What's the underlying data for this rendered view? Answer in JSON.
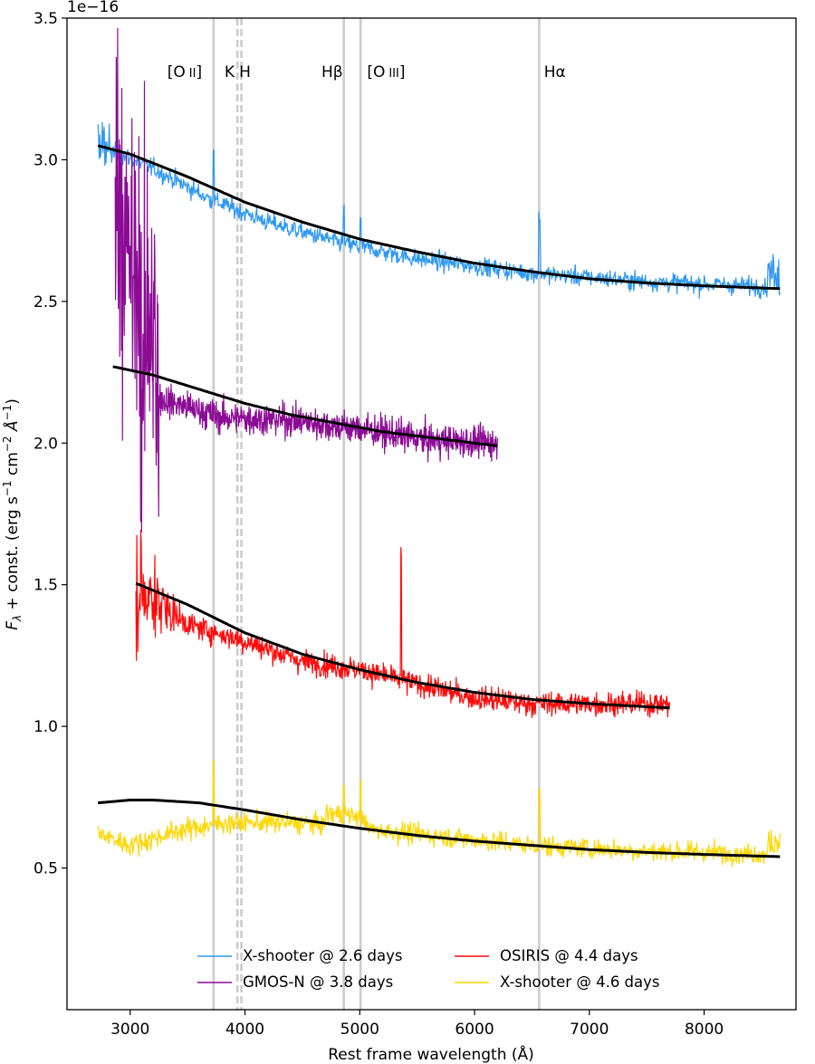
{
  "chart_data": {
    "type": "line",
    "xlabel": "Rest frame wavelength (Å)",
    "ylabel": "F_λ + const. (erg s^-1 cm^-2 Å^-1)",
    "ylabel_parts": {
      "symbol": "F",
      "subscript": "λ",
      "text1": " + const. (erg s",
      "sup1": "−1",
      "text2": " cm",
      "sup2": "−2",
      "text3": " Å",
      "sup3": "−1",
      "text4": ")"
    },
    "y_offset_label": "1e−16",
    "xlim": [
      2450,
      8800
    ],
    "ylim": [
      0.0,
      3.5
    ],
    "xticks": [
      3000,
      4000,
      5000,
      6000,
      7000,
      8000
    ],
    "xtick_labels": [
      "3000",
      "4000",
      "5000",
      "6000",
      "7000",
      "8000"
    ],
    "yticks": [
      0.5,
      1.0,
      1.5,
      2.0,
      2.5,
      3.0,
      3.5
    ],
    "ytick_labels": [
      "0.5",
      "1.0",
      "1.5",
      "2.0",
      "2.5",
      "3.0",
      "3.5"
    ],
    "grid": false,
    "legend_location": "bottom-center",
    "line_markers": [
      {
        "label": "[O II]",
        "name": "[O",
        "roman": "II",
        "close": "]",
        "x": 3727,
        "style": "solid",
        "label_x": 3475
      },
      {
        "label": "K",
        "name": "K",
        "x": 3934,
        "style": "dashed",
        "label_x": 3866
      },
      {
        "label": "H",
        "name": "H",
        "x": 3969,
        "style": "dashed",
        "label_x": 4000
      },
      {
        "label": "Hβ",
        "name": "Hβ",
        "x": 4861,
        "style": "solid",
        "label_x": 4760
      },
      {
        "label": "[O III]",
        "name": "[O",
        "roman": "III",
        "close": "]",
        "x": 5007,
        "style": "solid",
        "label_x": 5230
      },
      {
        "label": "Hα",
        "name": "Hα",
        "x": 6563,
        "style": "solid",
        "label_x": 6700
      }
    ],
    "series": [
      {
        "name": "X-shooter @ 2.6 days",
        "color": "#2e97f2",
        "x_range": [
          2720,
          8660
        ],
        "noise": 0.035,
        "continuum": {
          "x": [
            2720,
            3200,
            3700,
            4200,
            4800,
            5500,
            6500,
            7500,
            8660
          ],
          "y": [
            3.05,
            2.97,
            2.86,
            2.78,
            2.71,
            2.65,
            2.6,
            2.57,
            2.55
          ]
        },
        "fit": {
          "x": [
            2720,
            3000,
            3500,
            4000,
            4500,
            5000,
            5500,
            6000,
            6500,
            7000,
            7500,
            8000,
            8660
          ],
          "y": [
            3.05,
            3.02,
            2.94,
            2.85,
            2.78,
            2.72,
            2.675,
            2.635,
            2.605,
            2.58,
            2.565,
            2.555,
            2.545
          ]
        }
      },
      {
        "name": "GMOS-N @ 3.8 days",
        "color": "#8b0b94",
        "x_range": [
          2870,
          6200
        ],
        "noise": 0.06,
        "continuum": {
          "x": [
            2870,
            3300,
            3800,
            4400,
            5000,
            5600,
            6200
          ],
          "y": [
            2.26,
            2.15,
            2.09,
            2.08,
            2.05,
            2.01,
            2.0
          ]
        },
        "fit": {
          "x": [
            2850,
            3200,
            3600,
            4000,
            4400,
            4800,
            5200,
            5600,
            6000,
            6200
          ],
          "y": [
            2.27,
            2.24,
            2.19,
            2.14,
            2.1,
            2.07,
            2.04,
            2.02,
            2.0,
            1.99
          ]
        }
      },
      {
        "name": "OSIRIS @ 4.4 days",
        "color": "#ff0a0a",
        "x_range": [
          3050,
          7700
        ],
        "noise": 0.045,
        "continuum": {
          "x": [
            3050,
            3500,
            4000,
            4500,
            5000,
            5500,
            6000,
            6500,
            7000,
            7700
          ],
          "y": [
            1.5,
            1.36,
            1.3,
            1.23,
            1.2,
            1.15,
            1.1,
            1.08,
            1.08,
            1.08
          ]
        },
        "fit": {
          "x": [
            3050,
            3500,
            4000,
            4500,
            5000,
            5500,
            6000,
            6500,
            7000,
            7700
          ],
          "y": [
            1.505,
            1.43,
            1.33,
            1.255,
            1.2,
            1.155,
            1.12,
            1.095,
            1.08,
            1.065
          ]
        }
      },
      {
        "name": "X-shooter @ 4.6 days",
        "color": "#ffd700",
        "x_range": [
          2720,
          8660
        ],
        "noise": 0.04,
        "continuum": {
          "x": [
            2720,
            3000,
            3400,
            3800,
            4300,
            4800,
            5500,
            6500,
            7500,
            8660
          ],
          "y": [
            0.62,
            0.58,
            0.63,
            0.66,
            0.66,
            0.65,
            0.62,
            0.58,
            0.56,
            0.55
          ]
        },
        "fit": {
          "x": [
            2720,
            3000,
            3200,
            3600,
            4000,
            4500,
            5000,
            5500,
            6000,
            6500,
            7000,
            7500,
            8000,
            8660
          ],
          "y": [
            0.73,
            0.74,
            0.74,
            0.73,
            0.705,
            0.67,
            0.64,
            0.615,
            0.595,
            0.58,
            0.565,
            0.555,
            0.548,
            0.54
          ]
        }
      }
    ],
    "fit_color": "#000000"
  }
}
